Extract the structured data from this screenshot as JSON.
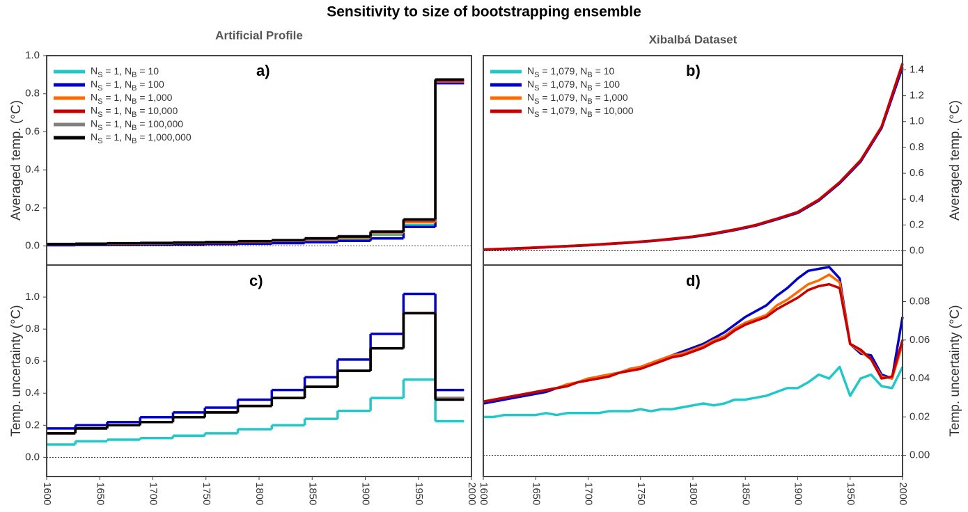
{
  "title": "Sensitivity to size of bootstrapping ensemble",
  "chart_data": [
    {
      "type": "step",
      "title": "Artificial Profile",
      "label": "a)",
      "ylabel": "Averaged temp. (°C)",
      "axis_side": "left",
      "xlim": [
        1600,
        2000
      ],
      "ylim": [
        -0.1,
        1.0
      ],
      "yticks": [
        {
          "value": 0,
          "label": "0.0"
        },
        {
          "value": 0.2,
          "label": "0.2"
        },
        {
          "value": 0.4,
          "label": "0.4"
        },
        {
          "value": 0.6,
          "label": "0.6"
        },
        {
          "value": 0.8,
          "label": "0.8"
        },
        {
          "value": 1.0,
          "label": "1.0"
        }
      ],
      "hline": 0,
      "legend": "upper left",
      "x": [
        1600,
        1627,
        1657,
        1688,
        1719,
        1749,
        1780,
        1812,
        1843,
        1874,
        1905,
        1936,
        1966,
        1993
      ],
      "series": [
        {
          "name": "NS = 1, NB = 10",
          "color": "#22c8c8",
          "values": [
            0.008,
            0.01,
            0.012,
            0.013,
            0.015,
            0.017,
            0.02,
            0.024,
            0.03,
            0.04,
            0.06,
            0.11,
            0.86,
            0.86
          ]
        },
        {
          "name": "NS = 1, NB = 100",
          "color": "#0000c8",
          "values": [
            0.004,
            0.005,
            0.006,
            0.007,
            0.008,
            0.01,
            0.012,
            0.015,
            0.02,
            0.027,
            0.04,
            0.1,
            0.855,
            0.855
          ]
        },
        {
          "name": "NS = 1, NB = 1,000",
          "color": "#ff6a00",
          "values": [
            0.009,
            0.011,
            0.012,
            0.014,
            0.016,
            0.018,
            0.022,
            0.027,
            0.035,
            0.045,
            0.068,
            0.125,
            0.865,
            0.865
          ]
        },
        {
          "name": "NS = 1, NB = 10,000",
          "color": "#c80000",
          "values": [
            0.01,
            0.012,
            0.014,
            0.016,
            0.018,
            0.02,
            0.025,
            0.03,
            0.04,
            0.05,
            0.075,
            0.135,
            0.87,
            0.87
          ]
        },
        {
          "name": "NS = 1, NB = 100,000",
          "color": "#808080",
          "values": [
            0.011,
            0.013,
            0.015,
            0.017,
            0.019,
            0.021,
            0.026,
            0.031,
            0.041,
            0.052,
            0.077,
            0.138,
            0.875,
            0.875
          ]
        },
        {
          "name": "NS = 1, NB = 1,000,000",
          "color": "#000000",
          "values": [
            0.01,
            0.012,
            0.014,
            0.016,
            0.018,
            0.02,
            0.025,
            0.03,
            0.04,
            0.05,
            0.075,
            0.14,
            0.875,
            0.875
          ]
        }
      ]
    },
    {
      "type": "line",
      "title": "Xibalbá Dataset",
      "label": "b)",
      "ylabel": "Averaged temp. (°C)",
      "axis_side": "right",
      "xlim": [
        1600,
        2000
      ],
      "ylim": [
        -0.11,
        1.51
      ],
      "yticks": [
        {
          "value": 0,
          "label": "0.0"
        },
        {
          "value": 0.2,
          "label": "0.2"
        },
        {
          "value": 0.4,
          "label": "0.4"
        },
        {
          "value": 0.6,
          "label": "0.6"
        },
        {
          "value": 0.8,
          "label": "0.8"
        },
        {
          "value": 1.0,
          "label": "1.0"
        },
        {
          "value": 1.2,
          "label": "1.2"
        },
        {
          "value": 1.4,
          "label": "1.4"
        }
      ],
      "hline": 0,
      "legend": "upper left",
      "x": [
        1600,
        1620,
        1640,
        1660,
        1680,
        1700,
        1720,
        1740,
        1760,
        1780,
        1800,
        1820,
        1840,
        1860,
        1880,
        1900,
        1920,
        1940,
        1960,
        1980,
        2000
      ],
      "series": [
        {
          "name": "NS = 1,079, NB = 10",
          "color": "#22c8c8",
          "values": [
            0.01,
            0.016,
            0.022,
            0.029,
            0.037,
            0.045,
            0.055,
            0.065,
            0.077,
            0.093,
            0.11,
            0.135,
            0.165,
            0.2,
            0.248,
            0.3,
            0.395,
            0.53,
            0.7,
            0.96,
            1.44
          ]
        },
        {
          "name": "NS = 1,079, NB = 100",
          "color": "#0000c8",
          "values": [
            0.008,
            0.014,
            0.02,
            0.027,
            0.035,
            0.043,
            0.053,
            0.063,
            0.075,
            0.09,
            0.107,
            0.131,
            0.16,
            0.195,
            0.243,
            0.293,
            0.388,
            0.522,
            0.69,
            0.95,
            1.42
          ]
        },
        {
          "name": "NS = 1,079, NB = 1,000",
          "color": "#ff6a00",
          "values": [
            0.01,
            0.016,
            0.022,
            0.029,
            0.037,
            0.045,
            0.055,
            0.065,
            0.077,
            0.093,
            0.11,
            0.135,
            0.165,
            0.2,
            0.248,
            0.3,
            0.395,
            0.53,
            0.7,
            0.96,
            1.45
          ]
        },
        {
          "name": "NS = 1,079, NB = 10,000",
          "color": "#c80000",
          "values": [
            0.01,
            0.016,
            0.022,
            0.029,
            0.037,
            0.045,
            0.055,
            0.065,
            0.077,
            0.093,
            0.11,
            0.135,
            0.165,
            0.2,
            0.248,
            0.3,
            0.395,
            0.53,
            0.7,
            0.96,
            1.45
          ]
        }
      ]
    },
    {
      "type": "step",
      "label": "c)",
      "ylabel": "Temp. uncertainty (°C)",
      "axis_side": "left",
      "xlim": [
        1600,
        2000
      ],
      "ylim": [
        -0.12,
        1.2
      ],
      "xticks": [
        1600,
        1650,
        1700,
        1750,
        1800,
        1850,
        1900,
        1950,
        2000
      ],
      "yticks": [
        {
          "value": 0,
          "label": "0.0"
        },
        {
          "value": 0.2,
          "label": "0.2"
        },
        {
          "value": 0.4,
          "label": "0.4"
        },
        {
          "value": 0.6,
          "label": "0.6"
        },
        {
          "value": 0.8,
          "label": "0.8"
        },
        {
          "value": 1.0,
          "label": "1.0"
        }
      ],
      "hline": 0,
      "x": [
        1600,
        1627,
        1657,
        1688,
        1719,
        1749,
        1780,
        1812,
        1843,
        1874,
        1905,
        1936,
        1966,
        1993
      ],
      "series": [
        {
          "color": "#22c8c8",
          "values": [
            0.08,
            0.1,
            0.11,
            0.12,
            0.135,
            0.15,
            0.175,
            0.2,
            0.24,
            0.29,
            0.37,
            0.485,
            0.225,
            0.225
          ]
        },
        {
          "color": "#0000c8",
          "values": [
            0.18,
            0.2,
            0.22,
            0.25,
            0.28,
            0.31,
            0.36,
            0.42,
            0.5,
            0.61,
            0.77,
            1.02,
            0.42,
            0.42
          ]
        },
        {
          "color": "#ff6a00",
          "values": [
            0.15,
            0.18,
            0.2,
            0.22,
            0.25,
            0.28,
            0.32,
            0.37,
            0.44,
            0.54,
            0.68,
            0.9,
            0.37,
            0.37
          ]
        },
        {
          "color": "#c80000",
          "values": [
            0.15,
            0.18,
            0.2,
            0.22,
            0.25,
            0.28,
            0.32,
            0.37,
            0.44,
            0.54,
            0.68,
            0.9,
            0.37,
            0.37
          ]
        },
        {
          "color": "#808080",
          "values": [
            0.15,
            0.18,
            0.2,
            0.22,
            0.25,
            0.28,
            0.32,
            0.37,
            0.44,
            0.54,
            0.68,
            0.9,
            0.37,
            0.37
          ]
        },
        {
          "color": "#000000",
          "values": [
            0.15,
            0.18,
            0.2,
            0.22,
            0.25,
            0.28,
            0.32,
            0.37,
            0.44,
            0.54,
            0.68,
            0.9,
            0.36,
            0.36
          ]
        }
      ]
    },
    {
      "type": "line",
      "label": "d)",
      "ylabel": "Temp. uncertainty (°C)",
      "axis_side": "right",
      "xlim": [
        1600,
        2000
      ],
      "ylim": [
        -0.011,
        0.099
      ],
      "xticks": [
        1600,
        1650,
        1700,
        1750,
        1800,
        1850,
        1900,
        1950,
        2000
      ],
      "yticks": [
        {
          "value": 0,
          "label": "0.00"
        },
        {
          "value": 0.02,
          "label": "0.02"
        },
        {
          "value": 0.04,
          "label": "0.04"
        },
        {
          "value": 0.06,
          "label": "0.06"
        },
        {
          "value": 0.08,
          "label": "0.08"
        }
      ],
      "hline": 0,
      "x": [
        1600,
        1610,
        1620,
        1630,
        1640,
        1650,
        1660,
        1670,
        1680,
        1690,
        1700,
        1710,
        1720,
        1730,
        1740,
        1750,
        1760,
        1770,
        1780,
        1790,
        1800,
        1810,
        1820,
        1830,
        1840,
        1850,
        1860,
        1870,
        1880,
        1890,
        1900,
        1910,
        1920,
        1930,
        1940,
        1950,
        1960,
        1970,
        1980,
        1990,
        2000
      ],
      "series": [
        {
          "color": "#22c8c8",
          "values": [
            0.02,
            0.02,
            0.021,
            0.021,
            0.021,
            0.021,
            0.022,
            0.021,
            0.022,
            0.022,
            0.022,
            0.022,
            0.023,
            0.023,
            0.023,
            0.024,
            0.023,
            0.024,
            0.024,
            0.025,
            0.026,
            0.027,
            0.026,
            0.027,
            0.029,
            0.029,
            0.03,
            0.031,
            0.033,
            0.035,
            0.035,
            0.038,
            0.042,
            0.04,
            0.046,
            0.031,
            0.04,
            0.042,
            0.036,
            0.035,
            0.046
          ]
        },
        {
          "color": "#0000c8",
          "values": [
            0.027,
            0.028,
            0.029,
            0.03,
            0.031,
            0.032,
            0.033,
            0.035,
            0.036,
            0.038,
            0.039,
            0.041,
            0.042,
            0.043,
            0.045,
            0.046,
            0.048,
            0.05,
            0.052,
            0.054,
            0.056,
            0.058,
            0.061,
            0.064,
            0.068,
            0.072,
            0.075,
            0.078,
            0.083,
            0.087,
            0.092,
            0.096,
            0.097,
            0.098,
            0.092,
            0.058,
            0.053,
            0.052,
            0.042,
            0.04,
            0.072
          ]
        },
        {
          "color": "#ff6a00",
          "values": [
            0.028,
            0.029,
            0.03,
            0.031,
            0.032,
            0.033,
            0.034,
            0.035,
            0.037,
            0.038,
            0.04,
            0.041,
            0.042,
            0.043,
            0.045,
            0.046,
            0.048,
            0.05,
            0.052,
            0.053,
            0.055,
            0.057,
            0.06,
            0.062,
            0.066,
            0.069,
            0.071,
            0.073,
            0.078,
            0.081,
            0.085,
            0.089,
            0.091,
            0.094,
            0.09,
            0.058,
            0.054,
            0.05,
            0.041,
            0.04,
            0.058
          ]
        },
        {
          "color": "#c80000",
          "values": [
            0.028,
            0.029,
            0.03,
            0.031,
            0.032,
            0.033,
            0.034,
            0.035,
            0.036,
            0.038,
            0.039,
            0.04,
            0.041,
            0.043,
            0.044,
            0.045,
            0.047,
            0.049,
            0.051,
            0.052,
            0.054,
            0.056,
            0.059,
            0.061,
            0.065,
            0.068,
            0.07,
            0.072,
            0.076,
            0.079,
            0.082,
            0.086,
            0.088,
            0.089,
            0.087,
            0.058,
            0.055,
            0.05,
            0.04,
            0.041,
            0.06
          ]
        }
      ]
    }
  ]
}
